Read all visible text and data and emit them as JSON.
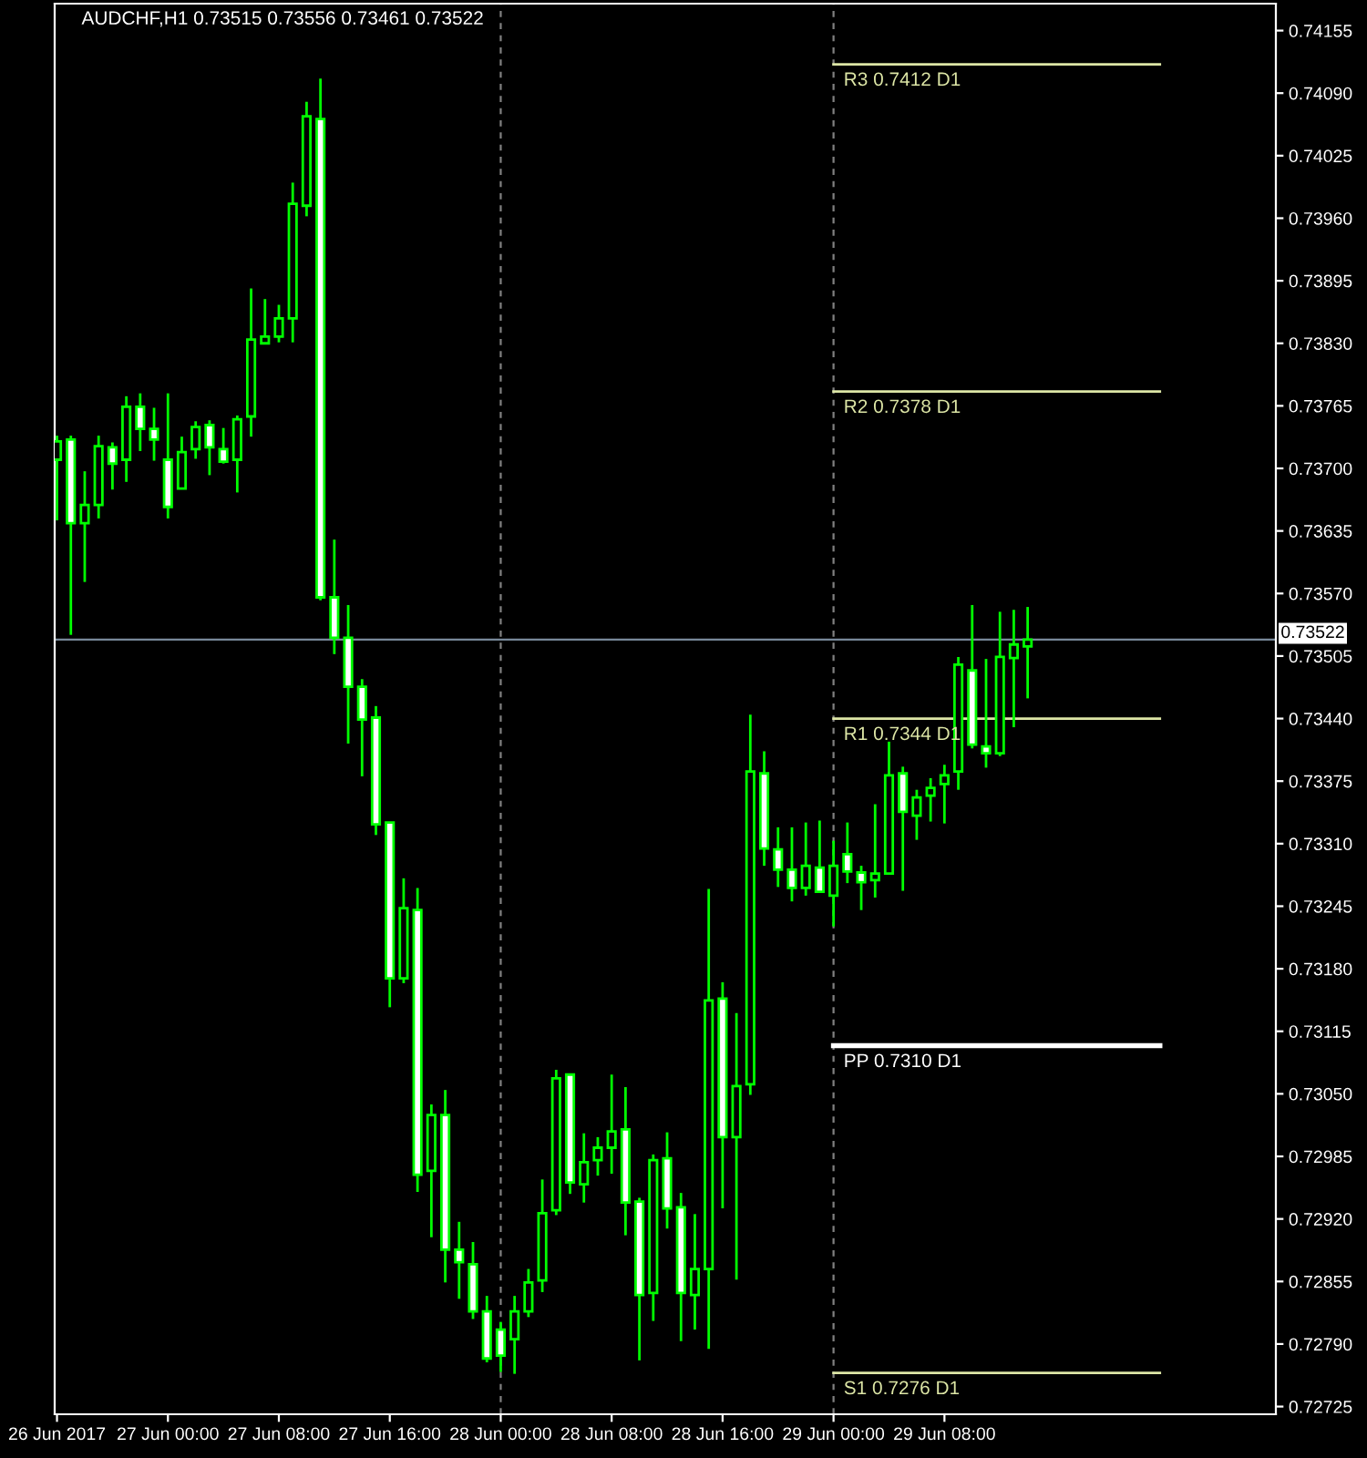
{
  "chart_data": {
    "type": "candlestick",
    "title": "AUDCHF,H1 0.73515 0.73556 0.73461 0.73522",
    "x": [
      "2017-06-26T16:00",
      "2017-06-26T17:00",
      "2017-06-26T18:00",
      "2017-06-26T19:00",
      "2017-06-26T20:00",
      "2017-06-26T21:00",
      "2017-06-26T22:00",
      "2017-06-26T23:00",
      "2017-06-27T00:00",
      "2017-06-27T01:00",
      "2017-06-27T02:00",
      "2017-06-27T03:00",
      "2017-06-27T04:00",
      "2017-06-27T05:00",
      "2017-06-27T06:00",
      "2017-06-27T07:00",
      "2017-06-27T08:00",
      "2017-06-27T09:00",
      "2017-06-27T10:00",
      "2017-06-27T11:00",
      "2017-06-27T12:00",
      "2017-06-27T13:00",
      "2017-06-27T14:00",
      "2017-06-27T15:00",
      "2017-06-27T16:00",
      "2017-06-27T17:00",
      "2017-06-27T18:00",
      "2017-06-27T19:00",
      "2017-06-27T20:00",
      "2017-06-27T21:00",
      "2017-06-27T22:00",
      "2017-06-27T23:00",
      "2017-06-28T00:00",
      "2017-06-28T01:00",
      "2017-06-28T02:00",
      "2017-06-28T03:00",
      "2017-06-28T04:00",
      "2017-06-28T05:00",
      "2017-06-28T06:00",
      "2017-06-28T07:00",
      "2017-06-28T08:00",
      "2017-06-28T09:00",
      "2017-06-28T10:00",
      "2017-06-28T11:00",
      "2017-06-28T12:00",
      "2017-06-28T13:00",
      "2017-06-28T14:00",
      "2017-06-28T15:00",
      "2017-06-28T16:00",
      "2017-06-28T17:00",
      "2017-06-28T18:00",
      "2017-06-28T19:00",
      "2017-06-28T20:00",
      "2017-06-28T21:00",
      "2017-06-28T22:00",
      "2017-06-28T23:00",
      "2017-06-29T00:00",
      "2017-06-29T01:00",
      "2017-06-29T02:00",
      "2017-06-29T03:00",
      "2017-06-29T04:00",
      "2017-06-29T05:00",
      "2017-06-29T06:00",
      "2017-06-29T07:00",
      "2017-06-29T08:00",
      "2017-06-29T09:00",
      "2017-06-29T10:00",
      "2017-06-29T11:00",
      "2017-06-29T12:00",
      "2017-06-29T13:00",
      "2017-06-29T14:00"
    ],
    "ohlc": [
      [
        0.73709,
        0.73734,
        0.73646,
        0.73728
      ],
      [
        0.7373,
        0.73734,
        0.73527,
        0.73643
      ],
      [
        0.73643,
        0.73697,
        0.73582,
        0.73662
      ],
      [
        0.73662,
        0.73734,
        0.73648,
        0.73723
      ],
      [
        0.73722,
        0.73727,
        0.73678,
        0.73705
      ],
      [
        0.73709,
        0.73775,
        0.73686,
        0.73764
      ],
      [
        0.73764,
        0.73778,
        0.73718,
        0.73741
      ],
      [
        0.73741,
        0.73763,
        0.73708,
        0.7373
      ],
      [
        0.73709,
        0.73778,
        0.73648,
        0.7366
      ],
      [
        0.73679,
        0.73733,
        0.73679,
        0.73717
      ],
      [
        0.7372,
        0.73749,
        0.7371,
        0.73743
      ],
      [
        0.73745,
        0.7375,
        0.73693,
        0.73722
      ],
      [
        0.7372,
        0.73742,
        0.73705,
        0.73707
      ],
      [
        0.73709,
        0.73755,
        0.73675,
        0.73751
      ],
      [
        0.73754,
        0.73887,
        0.73733,
        0.73834
      ],
      [
        0.7383,
        0.73876,
        0.7383,
        0.73837
      ],
      [
        0.73837,
        0.7387,
        0.73831,
        0.73856
      ],
      [
        0.73856,
        0.73997,
        0.73831,
        0.73975
      ],
      [
        0.73973,
        0.74081,
        0.73962,
        0.74066
      ],
      [
        0.74063,
        0.74105,
        0.73563,
        0.73566
      ],
      [
        0.73566,
        0.73626,
        0.73507,
        0.73524
      ],
      [
        0.73524,
        0.73558,
        0.73414,
        0.73473
      ],
      [
        0.73473,
        0.73481,
        0.7338,
        0.73439
      ],
      [
        0.73441,
        0.73453,
        0.73319,
        0.7333
      ],
      [
        0.73332,
        0.73332,
        0.7314,
        0.7317
      ],
      [
        0.7317,
        0.73274,
        0.73165,
        0.73243
      ],
      [
        0.73241,
        0.73264,
        0.72948,
        0.72966
      ],
      [
        0.7297,
        0.73039,
        0.72901,
        0.73028
      ],
      [
        0.73028,
        0.73054,
        0.72854,
        0.72888
      ],
      [
        0.72888,
        0.72917,
        0.72837,
        0.72875
      ],
      [
        0.72873,
        0.72896,
        0.72816,
        0.72824
      ],
      [
        0.72824,
        0.7284,
        0.72771,
        0.72775
      ],
      [
        0.72805,
        0.72813,
        0.72761,
        0.72778
      ],
      [
        0.72795,
        0.7284,
        0.72759,
        0.72824
      ],
      [
        0.72824,
        0.72868,
        0.72818,
        0.72854
      ],
      [
        0.72856,
        0.72961,
        0.72844,
        0.72926
      ],
      [
        0.72929,
        0.73075,
        0.72924,
        0.73066
      ],
      [
        0.7307,
        0.7307,
        0.72946,
        0.72958
      ],
      [
        0.72956,
        0.73009,
        0.72937,
        0.72979
      ],
      [
        0.72981,
        0.73005,
        0.72965,
        0.72994
      ],
      [
        0.72994,
        0.7307,
        0.72967,
        0.73011
      ],
      [
        0.73013,
        0.73057,
        0.72903,
        0.72937
      ],
      [
        0.72938,
        0.72942,
        0.72773,
        0.72841
      ],
      [
        0.72843,
        0.72987,
        0.72814,
        0.72981
      ],
      [
        0.72983,
        0.7301,
        0.7291,
        0.72931
      ],
      [
        0.72932,
        0.72947,
        0.72793,
        0.72843
      ],
      [
        0.72841,
        0.72925,
        0.72805,
        0.72868
      ],
      [
        0.72868,
        0.73263,
        0.72785,
        0.73147
      ],
      [
        0.73149,
        0.73166,
        0.72931,
        0.73005
      ],
      [
        0.73005,
        0.73134,
        0.72857,
        0.73058
      ],
      [
        0.7306,
        0.73444,
        0.73049,
        0.73385
      ],
      [
        0.73383,
        0.73406,
        0.73287,
        0.73305
      ],
      [
        0.73304,
        0.73327,
        0.73265,
        0.73283
      ],
      [
        0.73283,
        0.73327,
        0.7325,
        0.73264
      ],
      [
        0.73264,
        0.73332,
        0.73256,
        0.73287
      ],
      [
        0.73285,
        0.73334,
        0.7326,
        0.7326
      ],
      [
        0.73256,
        0.73313,
        0.73224,
        0.73287
      ],
      [
        0.73299,
        0.73332,
        0.73269,
        0.73281
      ],
      [
        0.7328,
        0.73287,
        0.73241,
        0.7327
      ],
      [
        0.73272,
        0.73351,
        0.73254,
        0.73279
      ],
      [
        0.73279,
        0.73416,
        0.73279,
        0.73381
      ],
      [
        0.73383,
        0.7339,
        0.73261,
        0.73343
      ],
      [
        0.73339,
        0.73366,
        0.73314,
        0.73358
      ],
      [
        0.7336,
        0.73378,
        0.73333,
        0.73368
      ],
      [
        0.73372,
        0.73392,
        0.73331,
        0.73381
      ],
      [
        0.73385,
        0.73504,
        0.73366,
        0.73496
      ],
      [
        0.7349,
        0.73558,
        0.73409,
        0.73413
      ],
      [
        0.73411,
        0.73502,
        0.73389,
        0.73404
      ],
      [
        0.73404,
        0.73551,
        0.73401,
        0.73504
      ],
      [
        0.73503,
        0.73553,
        0.73431,
        0.73517
      ],
      [
        0.73515,
        0.73556,
        0.73461,
        0.73522
      ]
    ],
    "xlim": [
      "2017-06-26T15:50",
      "2017-06-30T07:54"
    ],
    "xticks": [
      {
        "value": "2017-06-26T16:00",
        "label": "26 Jun 2017"
      },
      {
        "value": "2017-06-27T00:00",
        "label": "27 Jun 00:00"
      },
      {
        "value": "2017-06-27T08:00",
        "label": "27 Jun 08:00"
      },
      {
        "value": "2017-06-27T16:00",
        "label": "27 Jun 16:00"
      },
      {
        "value": "2017-06-28T00:00",
        "label": "28 Jun 00:00"
      },
      {
        "value": "2017-06-28T08:00",
        "label": "28 Jun 08:00"
      },
      {
        "value": "2017-06-28T16:00",
        "label": "28 Jun 16:00"
      },
      {
        "value": "2017-06-29T00:00",
        "label": "29 Jun 00:00"
      },
      {
        "value": "2017-06-29T08:00",
        "label": "29 Jun 08:00"
      }
    ],
    "ylim": [
      0.72717,
      0.74183
    ],
    "yticks": [
      0.72725,
      {
        "value": 0.7279,
        "label": "0.72790"
      },
      0.72855,
      {
        "value": 0.7292,
        "label": "0.72920"
      },
      0.72985,
      {
        "value": 0.7305,
        "label": "0.73050"
      },
      0.73115,
      {
        "value": 0.7318,
        "label": "0.73180"
      },
      0.73245,
      {
        "value": 0.7331,
        "label": "0.73310"
      },
      0.73375,
      {
        "value": 0.7344,
        "label": "0.73440"
      },
      0.73505,
      {
        "value": 0.7357,
        "label": "0.73570"
      },
      0.73635,
      {
        "value": 0.737,
        "label": "0.73700"
      },
      0.73765,
      {
        "value": 0.7383,
        "label": "0.73830"
      },
      0.73895,
      {
        "value": 0.7396,
        "label": "0.73960"
      },
      0.74025,
      {
        "value": 0.7409,
        "label": "0.74090"
      },
      0.74155
    ],
    "ref_lines": [
      {
        "axis": "x",
        "value": "2017-06-28T00:00",
        "color": "#808080",
        "line_style": "dashed"
      },
      {
        "axis": "x",
        "value": "2017-06-29T00:00",
        "color": "#808080",
        "line_style": "dashed"
      },
      {
        "axis": "y",
        "value": 0.7412,
        "label": "R3 0.7412 D1",
        "color": "#dde6a6"
      },
      {
        "axis": "y",
        "value": 0.7378,
        "label": "R2 0.7378 D1",
        "color": "#dde6a6"
      },
      {
        "axis": "y",
        "value": 0.7344,
        "label": "R1 0.7344 D1",
        "color": "#dde6a6"
      },
      {
        "axis": "y",
        "value": 0.731,
        "label": "PP 0.7310 D1",
        "color": "#ffffff"
      },
      {
        "axis": "y",
        "value": 0.7276,
        "label": "S1 0.7276 D1",
        "color": "#dde6a6"
      },
      {
        "axis": "y",
        "value": 0.73522,
        "label": "0.73522",
        "color": "#778899"
      }
    ],
    "grid": false
  }
}
